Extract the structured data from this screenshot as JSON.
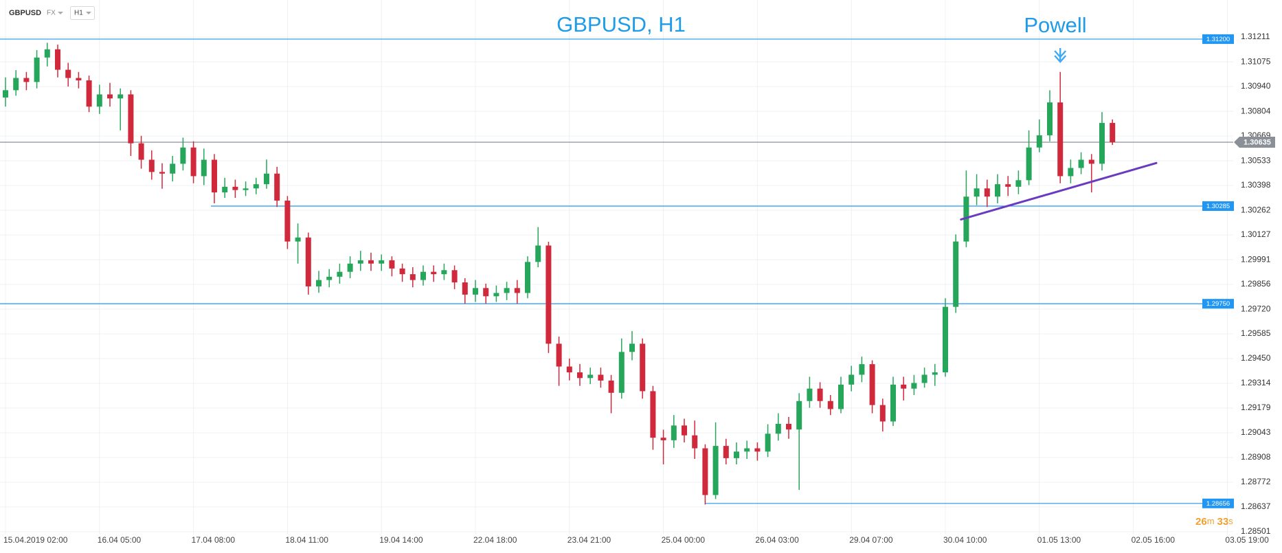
{
  "toolbar": {
    "symbol": "GBPUSD",
    "market": "FX",
    "timeframe": "H1"
  },
  "timer": {
    "minutes": "26",
    "minutes_unit": "m",
    "seconds": "33",
    "seconds_unit": "s"
  },
  "chart_data": {
    "type": "candlestick",
    "title": "GBPUSD, H1",
    "annotation": "Powell",
    "up_color": "#26a65b",
    "down_color": "#d0293b",
    "grid": true,
    "ylim": [
      1.28501,
      1.31211
    ],
    "yticks": [
      1.31211,
      1.31075,
      {
        "value": 1.3094,
        "label": "1.30940"
      },
      1.30804,
      1.30669,
      1.30533,
      1.30398,
      1.30262,
      1.30127,
      1.29991,
      1.29856,
      {
        "value": 1.2972,
        "label": "1.29720"
      },
      1.29585,
      {
        "value": 1.2945,
        "label": "1.29450"
      },
      1.29314,
      1.29179,
      1.29043,
      1.28908,
      1.28772,
      1.28637,
      1.28501
    ],
    "categories": [
      "15.04.2019 02:00",
      null,
      null,
      null,
      null,
      null,
      null,
      null,
      null,
      "16.04 05:00",
      null,
      null,
      null,
      null,
      null,
      null,
      null,
      null,
      "17.04 08:00",
      null,
      null,
      null,
      null,
      null,
      null,
      null,
      null,
      "18.04 11:00",
      null,
      null,
      null,
      null,
      null,
      null,
      null,
      null,
      "19.04 14:00",
      null,
      null,
      null,
      null,
      null,
      null,
      null,
      null,
      "22.04 18:00",
      null,
      null,
      null,
      null,
      null,
      null,
      null,
      null,
      "23.04 21:00",
      null,
      null,
      null,
      null,
      null,
      null,
      null,
      null,
      "25.04 00:00",
      null,
      null,
      null,
      null,
      null,
      null,
      null,
      null,
      "26.04 03:00",
      null,
      null,
      null,
      null,
      null,
      null,
      null,
      null,
      "29.04 07:00",
      null,
      null,
      null,
      null,
      null,
      null,
      null,
      null,
      "30.04 10:00",
      null,
      null,
      null,
      null,
      null,
      null,
      null,
      null,
      "01.05 13:00",
      null,
      null,
      null,
      null,
      null,
      null,
      null,
      null,
      "02.05 16:00",
      null,
      null,
      null,
      null,
      null,
      null,
      null,
      null,
      "03.05 19:00"
    ],
    "open": [
      1.3088,
      1.3092,
      1.30987,
      1.30965,
      1.31099,
      1.31144,
      1.31032,
      1.30987,
      1.30974,
      1.3083,
      1.30897,
      1.30875,
      1.30897,
      1.30629,
      1.30539,
      1.30472,
      1.30463,
      1.30517,
      1.30606,
      1.30449,
      1.30539,
      1.3036,
      1.30391,
      1.30373,
      1.30382,
      1.30405,
      1.30463,
      1.30315,
      1.30091,
      1.30113,
      1.29845,
      1.2988,
      1.29898,
      1.29925,
      1.2997,
      1.29988,
      1.2997,
      1.29988,
      1.29943,
      1.29912,
      1.2988,
      1.29925,
      1.29912,
      1.29934,
      1.29867,
      1.298,
      1.29836,
      1.29791,
      1.29809,
      1.29836,
      1.29809,
      1.29979,
      1.30069,
      1.29531,
      1.29406,
      1.29374,
      1.29343,
      1.29361,
      1.29329,
      1.29262,
      1.29486,
      1.29531,
      1.29271,
      1.29016,
      1.29002,
      1.29083,
      1.29029,
      1.28958,
      1.28702,
      1.28971,
      1.28904,
      1.2894,
      1.28958,
      1.2894,
      1.29038,
      1.29092,
      1.29061,
      1.29217,
      1.29285,
      1.29217,
      1.29173,
      1.29307,
      1.29361,
      1.29419,
      1.29195,
      1.29105,
      1.29307,
      1.29285,
      1.29316,
      1.29361,
      1.29374,
      1.29733,
      1.30091,
      1.30337,
      1.30382,
      1.30337,
      1.30405,
      1.30391,
      1.30427,
      1.30606,
      1.30673,
      1.30853,
      1.30449,
      1.30494,
      1.30539,
      1.30517,
      1.30741,
      null,
      null,
      null,
      null,
      null,
      null,
      null,
      null,
      null,
      null,
      null
    ],
    "high": [
      1.3099,
      1.3103,
      1.3102,
      1.3114,
      1.3118,
      1.3117,
      1.3107,
      1.3102,
      1.31,
      1.3095,
      1.3096,
      1.3093,
      1.3092,
      1.3067,
      1.3059,
      1.3052,
      1.3056,
      1.3066,
      1.3064,
      1.306,
      1.3057,
      1.3044,
      1.3043,
      1.3042,
      1.3044,
      1.3054,
      1.305,
      1.3034,
      1.3019,
      1.3014,
      1.2993,
      1.2994,
      1.2997,
      1.3001,
      1.3004,
      1.3003,
      1.3002,
      1.3001,
      1.2997,
      1.2995,
      1.2996,
      1.2996,
      1.2997,
      1.2996,
      1.2989,
      1.2988,
      1.2986,
      1.2985,
      1.2987,
      1.2988,
      1.3001,
      1.3017,
      1.3009,
      1.2957,
      1.2945,
      1.2942,
      1.294,
      1.294,
      1.2936,
      1.2956,
      1.296,
      1.2956,
      1.293,
      1.2906,
      1.2914,
      1.2912,
      1.2911,
      1.2898,
      1.291,
      1.2901,
      1.2899,
      1.29,
      1.2899,
      1.2909,
      1.2915,
      1.2913,
      1.2926,
      1.2935,
      1.2932,
      1.2925,
      1.2935,
      1.2941,
      1.2946,
      1.2944,
      1.2923,
      1.2935,
      1.2935,
      1.2936,
      1.294,
      1.2942,
      1.2978,
      1.3013,
      1.3048,
      1.3046,
      1.3043,
      1.3046,
      1.3045,
      1.3048,
      1.307,
      1.3076,
      1.3092,
      1.3102,
      1.3054,
      1.3058,
      1.3057,
      1.308,
      1.3076,
      null,
      null,
      null,
      null,
      null,
      null,
      null,
      null,
      null,
      null,
      null
    ],
    "low": [
      1.3083,
      1.3089,
      1.3092,
      1.3093,
      1.3105,
      1.3099,
      1.3094,
      1.3093,
      1.308,
      1.3079,
      1.3083,
      1.307,
      1.3056,
      1.3049,
      1.3043,
      1.3038,
      1.3042,
      1.3048,
      1.3041,
      1.304,
      1.303,
      1.3033,
      1.3033,
      1.3034,
      1.3035,
      1.3038,
      1.3028,
      1.3005,
      1.2997,
      1.298,
      1.2981,
      1.2984,
      1.2986,
      1.2989,
      1.2993,
      1.2993,
      1.2993,
      1.299,
      1.2987,
      1.2984,
      1.2985,
      1.2987,
      1.2988,
      1.2983,
      1.2975,
      1.2976,
      1.2975,
      1.2976,
      1.2977,
      1.2975,
      1.2978,
      1.2995,
      1.2948,
      1.293,
      1.2933,
      1.293,
      1.2931,
      1.2929,
      1.2915,
      1.2923,
      1.2944,
      1.2923,
      1.2895,
      1.2887,
      1.2896,
      1.2899,
      1.289,
      1.2865,
      1.2868,
      1.2887,
      1.2887,
      1.289,
      1.2889,
      1.2891,
      1.29,
      1.2901,
      1.2873,
      1.2918,
      1.2918,
      1.2914,
      1.2915,
      1.2927,
      1.2932,
      1.2915,
      1.2905,
      1.2908,
      1.2922,
      1.2925,
      1.2929,
      1.293,
      1.2935,
      1.297,
      1.3006,
      1.3029,
      1.3028,
      1.303,
      1.3034,
      1.3035,
      1.304,
      1.3058,
      1.3064,
      1.3041,
      1.3041,
      1.3046,
      1.3036,
      1.3048,
      1.3062,
      null,
      null,
      null,
      null,
      null,
      null,
      null,
      null,
      null,
      null,
      null
    ],
    "close": [
      1.3092,
      1.30987,
      1.30965,
      1.31099,
      1.31144,
      1.31032,
      1.30987,
      1.30974,
      1.3083,
      1.30897,
      1.30875,
      1.30897,
      1.30629,
      1.30539,
      1.30472,
      1.30463,
      1.30517,
      1.30606,
      1.30449,
      1.30539,
      1.3036,
      1.30391,
      1.30373,
      1.30382,
      1.30405,
      1.30463,
      1.30315,
      1.30091,
      1.30113,
      1.29845,
      1.2988,
      1.29898,
      1.29925,
      1.2997,
      1.29988,
      1.2997,
      1.29988,
      1.29943,
      1.29912,
      1.2988,
      1.29925,
      1.29912,
      1.29934,
      1.29867,
      1.298,
      1.29836,
      1.29791,
      1.29809,
      1.29836,
      1.29809,
      1.29979,
      1.30069,
      1.29531,
      1.29406,
      1.29374,
      1.29343,
      1.29361,
      1.29329,
      1.29262,
      1.29486,
      1.29531,
      1.29271,
      1.29016,
      1.29002,
      1.29083,
      1.29029,
      1.28958,
      1.28702,
      1.28971,
      1.28904,
      1.2894,
      1.28958,
      1.2894,
      1.29038,
      1.29092,
      1.29061,
      1.29217,
      1.29285,
      1.29217,
      1.29173,
      1.29307,
      1.29361,
      1.29419,
      1.29195,
      1.29105,
      1.29307,
      1.29285,
      1.29316,
      1.29361,
      1.29374,
      1.29733,
      1.30091,
      1.30337,
      1.30382,
      1.30337,
      1.30405,
      1.30391,
      1.30427,
      1.30606,
      1.30673,
      1.30853,
      1.30449,
      1.30494,
      1.30539,
      1.30517,
      1.30741,
      1.30635,
      null,
      null,
      null,
      null,
      null,
      null,
      null,
      null,
      null,
      null,
      null
    ],
    "levels": [
      {
        "value": 1.312,
        "label": "1.31200"
      },
      1.30285,
      {
        "value": 1.2975,
        "label": "1.29750"
      },
      1.28656
    ],
    "level_color": "#2196f3",
    "current_price": 1.30635,
    "current_price_color": "#8a8f98",
    "trendline": {
      "color": "#6a3bbf",
      "points": [
        [
          91.5,
          1.30212
        ],
        [
          110.2,
          1.30521
        ]
      ]
    }
  }
}
